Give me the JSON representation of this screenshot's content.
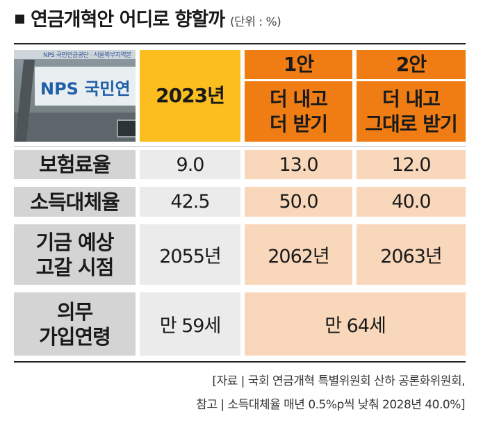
{
  "title": "연금개혁안 어디로 향할까",
  "unit": "(단위 : %)",
  "photo": {
    "logo_text": "NPS 국민연",
    "sign_text": "NPS 국민연금공단 · 서울북부지역본"
  },
  "header": {
    "col_2023": "2023년",
    "plan1_name": "1안",
    "plan1_desc_line1": "더 내고",
    "plan1_desc_line2": "더 받기",
    "plan2_name": "2안",
    "plan2_desc_line1": "더 내고",
    "plan2_desc_line2": "그대로 받기"
  },
  "rows": [
    {
      "label": "보험료율",
      "y2023": "9.0",
      "plan1": "13.0",
      "plan2": "12.0"
    },
    {
      "label": "소득대체율",
      "y2023": "42.5",
      "plan1": "50.0",
      "plan2": "40.0"
    },
    {
      "label_line1": "기금 예상",
      "label_line2": "고갈 시점",
      "y2023": "2055년",
      "plan1": "2062년",
      "plan2": "2063년"
    },
    {
      "label_line1": "의무",
      "label_line2": "가입연령",
      "y2023": "만 59세",
      "plans": "만 64세"
    }
  ],
  "footer": {
    "line1": "[자료 | 국회 연금개혁 특별위원회 산하 공론화위원회,",
    "line2": "참고 | 소득대체율 매년 0.5%p씩 낮춰 2028년 40.0%]"
  },
  "colors": {
    "gold": "#fbbe1e",
    "orange": "#f07d14",
    "light_orange": "#f9d7bb",
    "label_gray": "#d4d4d4",
    "value_gray": "#ebebeb"
  }
}
